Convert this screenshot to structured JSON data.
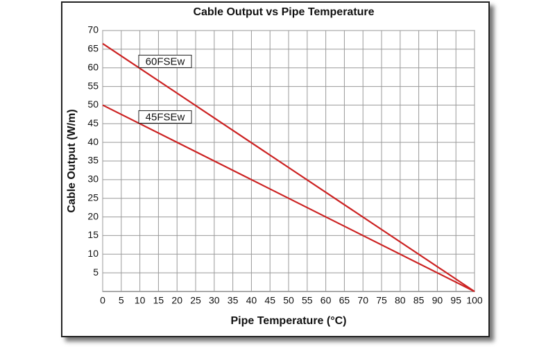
{
  "chart_data": {
    "type": "line",
    "title": "Cable Output vs Pipe Temperature",
    "x_label": "Pipe Temperature (°C)",
    "y_label": "Cable Output (W/m)",
    "x": [
      0,
      100
    ],
    "series": [
      {
        "name": "60FSEw",
        "color": "#cc2222",
        "values": [
          66.5,
          0
        ]
      },
      {
        "name": "45FSEw",
        "color": "#cc2222",
        "values": [
          50,
          0
        ]
      }
    ],
    "xlim": [
      0,
      100
    ],
    "xticks": [
      0,
      5,
      10,
      15,
      20,
      25,
      30,
      35,
      40,
      45,
      50,
      55,
      60,
      65,
      70,
      75,
      80,
      85,
      90,
      95,
      100
    ],
    "ylim": [
      0,
      70
    ],
    "yticks": [
      5,
      10,
      15,
      20,
      25,
      30,
      35,
      40,
      45,
      50,
      55,
      60,
      65,
      70
    ],
    "grid": true
  }
}
